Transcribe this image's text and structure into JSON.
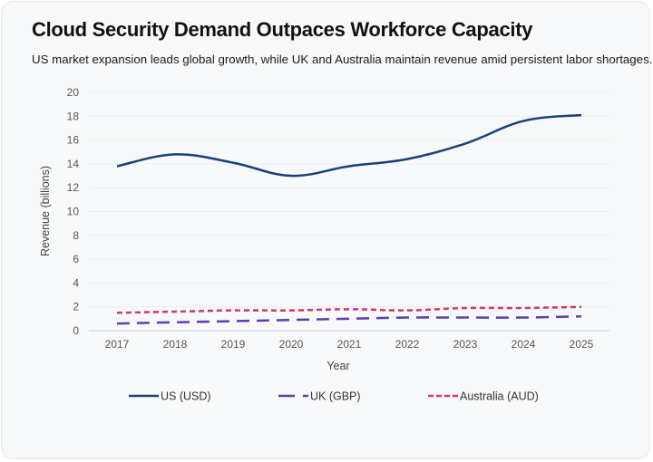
{
  "header": {
    "title": "Cloud Security Demand Outpaces Workforce Capacity",
    "subtitle": "US market expansion leads global growth, while UK and Australia maintain revenue amid persistent labor shortages."
  },
  "chart_data": {
    "type": "line",
    "title": "Cloud Security Demand Outpaces Workforce Capacity",
    "subtitle": "US market expansion leads global growth, while UK and Australia maintain revenue amid persistent labor shortages.",
    "xlabel": "Year",
    "ylabel": "Revenue (billions)",
    "x": [
      "2017",
      "2018",
      "2019",
      "2020",
      "2021",
      "2022",
      "2023",
      "2024",
      "2025"
    ],
    "ylim": [
      0,
      20
    ],
    "yticks": [
      0,
      2,
      4,
      6,
      8,
      10,
      12,
      14,
      16,
      18,
      20
    ],
    "grid": true,
    "legend_position": "bottom",
    "series": [
      {
        "name": "US (USD)",
        "color": "#1b3f7c",
        "style": "solid",
        "smooth": true,
        "values": [
          13.8,
          14.8,
          14.1,
          13.0,
          13.8,
          14.4,
          15.7,
          17.6,
          18.1
        ]
      },
      {
        "name": "UK (GBP)",
        "color": "#5a3db5",
        "style": "long-dash",
        "smooth": true,
        "values": [
          0.6,
          0.7,
          0.8,
          0.9,
          1.0,
          1.1,
          1.1,
          1.1,
          1.2
        ]
      },
      {
        "name": "Australia (AUD)",
        "color": "#d6336c",
        "style": "short-dash",
        "smooth": true,
        "values": [
          1.5,
          1.6,
          1.7,
          1.7,
          1.8,
          1.7,
          1.9,
          1.9,
          2.0
        ]
      }
    ]
  }
}
